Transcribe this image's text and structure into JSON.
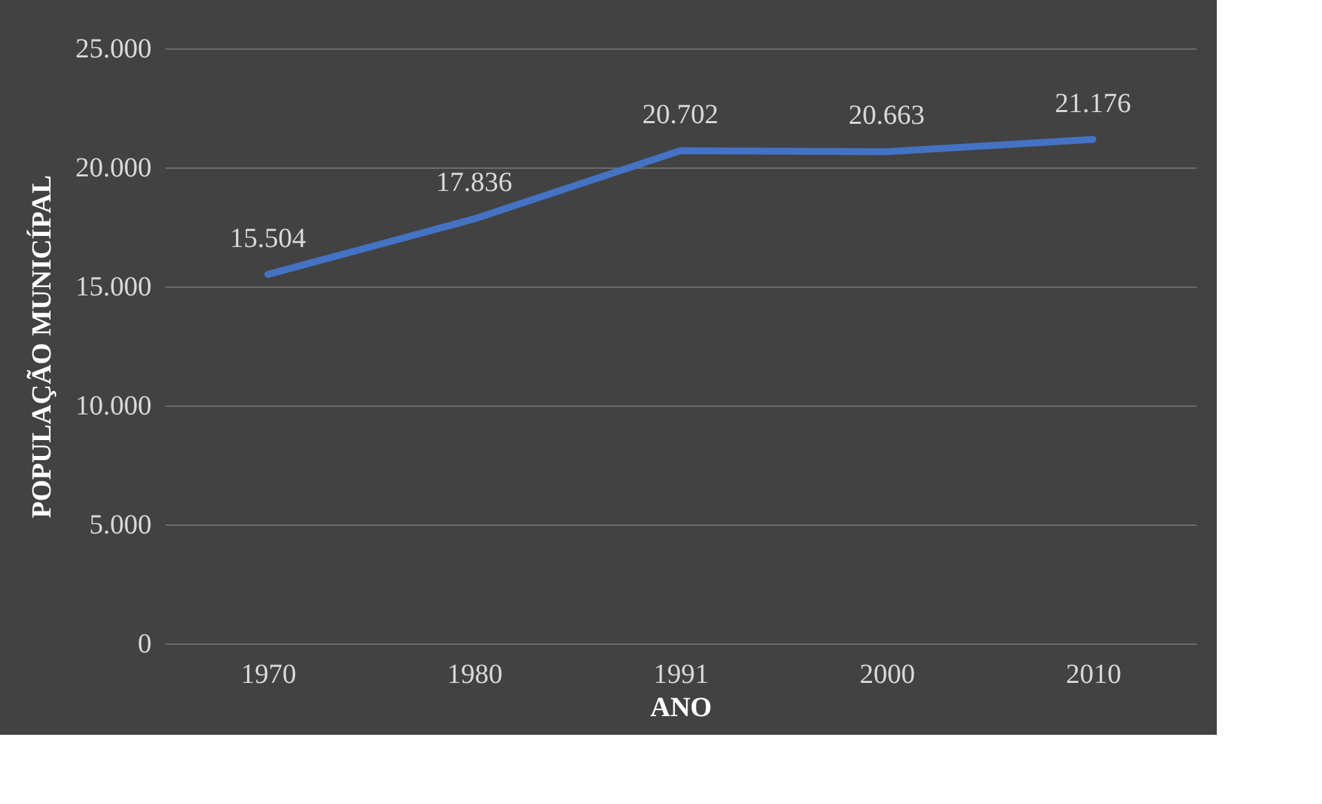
{
  "chart_data": {
    "type": "line",
    "xlabel": "ANO",
    "ylabel": "POPULAÇÃO MUNICÍPAL",
    "categories": [
      "1970",
      "1980",
      "1991",
      "2000",
      "2010"
    ],
    "series": [
      {
        "color": "#4472c4",
        "values": [
          15504,
          17836,
          20702,
          20663,
          21176
        ],
        "value_labels": [
          "15.504",
          "17.836",
          "20.702",
          "20.663",
          "21.176"
        ]
      }
    ],
    "ylim": [
      0,
      25000
    ],
    "yticks": [
      0,
      {
        "value": 5000,
        "label": "5.000"
      },
      {
        "value": 10000,
        "label": "10.000"
      },
      {
        "value": 15000,
        "label": "15.000"
      },
      {
        "value": 20000,
        "label": "20.000"
      },
      {
        "value": 25000,
        "label": "25.000"
      }
    ],
    "grid": "y",
    "marker": "none",
    "line_style": "solid"
  }
}
